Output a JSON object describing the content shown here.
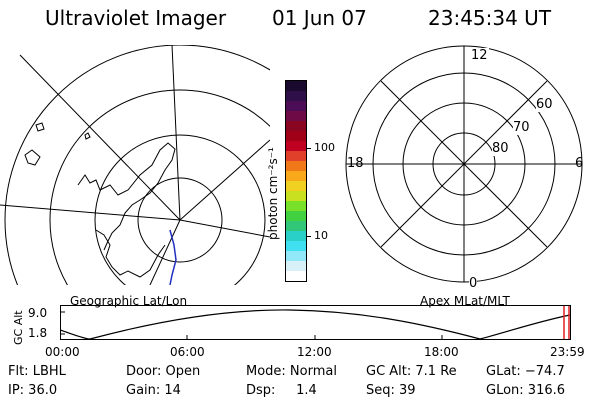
{
  "header": {
    "instrument": "Ultraviolet Imager",
    "date": "01 Jun 07",
    "time": "23:45:34 UT"
  },
  "colorbar": {
    "unit_label": "photon cm⁻²s⁻¹",
    "ticks": [
      "100",
      "10"
    ],
    "colors": [
      "#1a0b2e",
      "#2e0f47",
      "#4a0d56",
      "#6e0a45",
      "#8a0620",
      "#a00018",
      "#c00020",
      "#e0402a",
      "#f07818",
      "#f8a818",
      "#f0d020",
      "#c8e020",
      "#78e028",
      "#40d040",
      "#30c878",
      "#28d0c8",
      "#40e0f0",
      "#90e8f8",
      "#d8f0f8",
      "#ffffff"
    ]
  },
  "left_panel": {
    "caption": "Geographic Lat/Lon"
  },
  "right_panel": {
    "caption": "Apex MLat/MLT",
    "mlt_labels": [
      "12",
      "18",
      "6",
      "0"
    ],
    "mlat_labels": [
      "60",
      "70",
      "80"
    ]
  },
  "altitude_plot": {
    "ylabel": "GC Alt",
    "yticks": [
      "9.0",
      "1.8"
    ],
    "xticks": [
      "00:00",
      "06:00",
      "12:00",
      "18:00",
      "23:59"
    ],
    "marker_color": "#e02020"
  },
  "status": {
    "row1": {
      "flt": "Flt: LBHL",
      "door": "Door: Open",
      "mode": "Mode: Normal",
      "gcalt": "GC Alt: 7.1 Re",
      "glat": "GLat: −74.7"
    },
    "row2": {
      "ip": "IP: 36.0",
      "gain": "Gain: 14",
      "dsp": "Dsp:     1.4",
      "seq": "Seq: 39",
      "glon": "GLon: 316.6"
    }
  }
}
